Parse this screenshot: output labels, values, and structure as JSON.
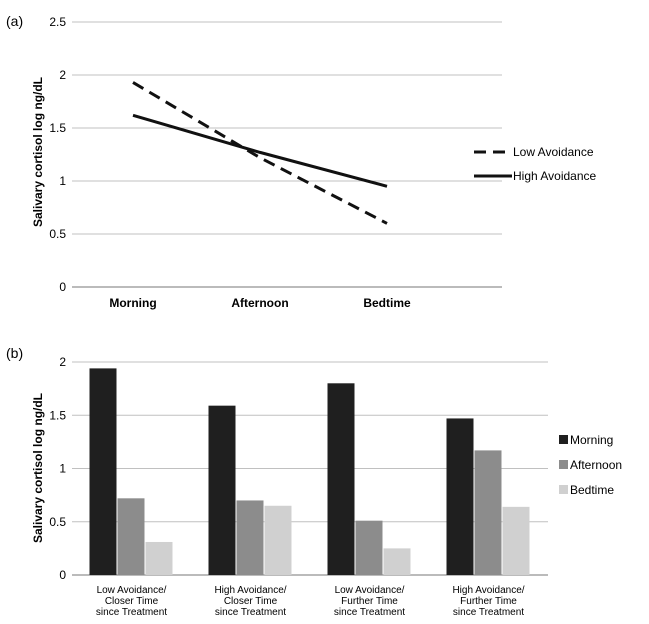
{
  "chart_data": [
    {
      "panel_label": "(a)",
      "type": "line",
      "ylabel": "Salivary cortisol log ng/dL",
      "categories": [
        "Morning",
        "Afternoon",
        "Bedtime"
      ],
      "ylim": [
        0,
        2.5
      ],
      "yticks": [
        "0",
        "0.5",
        "1",
        "1.5",
        "2",
        "2.5"
      ],
      "grid": true,
      "legend": "right",
      "series": [
        {
          "name": "Low Avoidance",
          "values": [
            1.93,
            1.22,
            0.6
          ],
          "style": "dashed",
          "color": "#111111"
        },
        {
          "name": "High Avoidance",
          "values": [
            1.62,
            1.27,
            0.95
          ],
          "style": "solid",
          "color": "#111111"
        }
      ]
    },
    {
      "panel_label": "(b)",
      "type": "bar",
      "ylabel": "Salivary cortisol log ng/dL",
      "categories": [
        [
          "Low Avoidance/",
          "Closer Time",
          "since Treatment"
        ],
        [
          "High Avoidance/",
          "Closer Time",
          "since Treatment"
        ],
        [
          "Low Avoidance/",
          "Further Time",
          "since Treatment"
        ],
        [
          "High Avoidance/",
          "Further Time",
          "since Treatment"
        ]
      ],
      "ylim": [
        0,
        2
      ],
      "yticks": [
        "0",
        "0.5",
        "1",
        "1.5",
        "2"
      ],
      "grid": true,
      "legend": "right",
      "series": [
        {
          "name": "Morning",
          "values": [
            1.94,
            1.59,
            1.8,
            1.47
          ],
          "color": "#1f1f1f"
        },
        {
          "name": "Afternoon",
          "values": [
            0.72,
            0.7,
            0.51,
            1.17
          ],
          "color": "#8c8c8c"
        },
        {
          "name": "Bedtime",
          "values": [
            0.31,
            0.65,
            0.25,
            0.64
          ],
          "color": "#d0d0d0"
        }
      ]
    }
  ]
}
